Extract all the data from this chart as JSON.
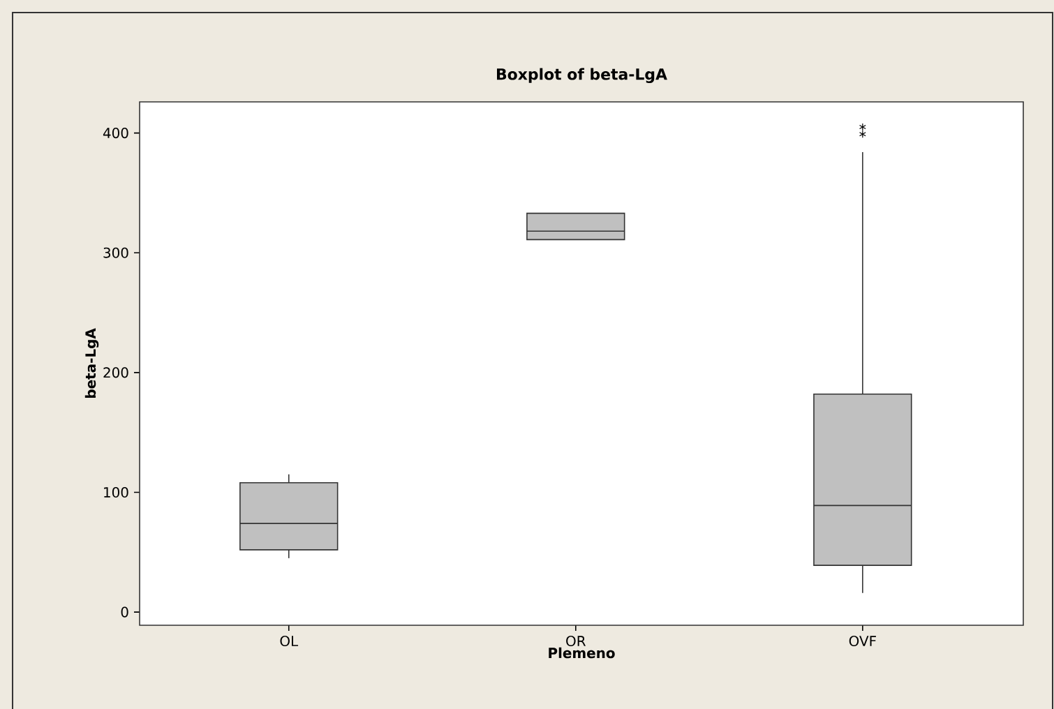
{
  "chart_data": {
    "type": "box",
    "title": "Boxplot of beta-LgA",
    "xlabel": "Plemeno",
    "ylabel": "beta-LgA",
    "categories": [
      "OL",
      "OR",
      "OVF"
    ],
    "boxes": [
      {
        "low": 45,
        "q1": 52,
        "median": 74,
        "q3": 108,
        "high": 115
      },
      {
        "low": 311,
        "q1": 311,
        "median": 318,
        "q3": 333,
        "high": 333
      },
      {
        "low": 16,
        "q1": 39,
        "median": 89,
        "q3": 182,
        "high": 384,
        "outliers": [
          405,
          399
        ]
      }
    ],
    "color": "#c0c0c0",
    "ylim": [
      -11,
      426
    ],
    "yticks": [
      0,
      100,
      200,
      300,
      400
    ],
    "grid": false
  }
}
